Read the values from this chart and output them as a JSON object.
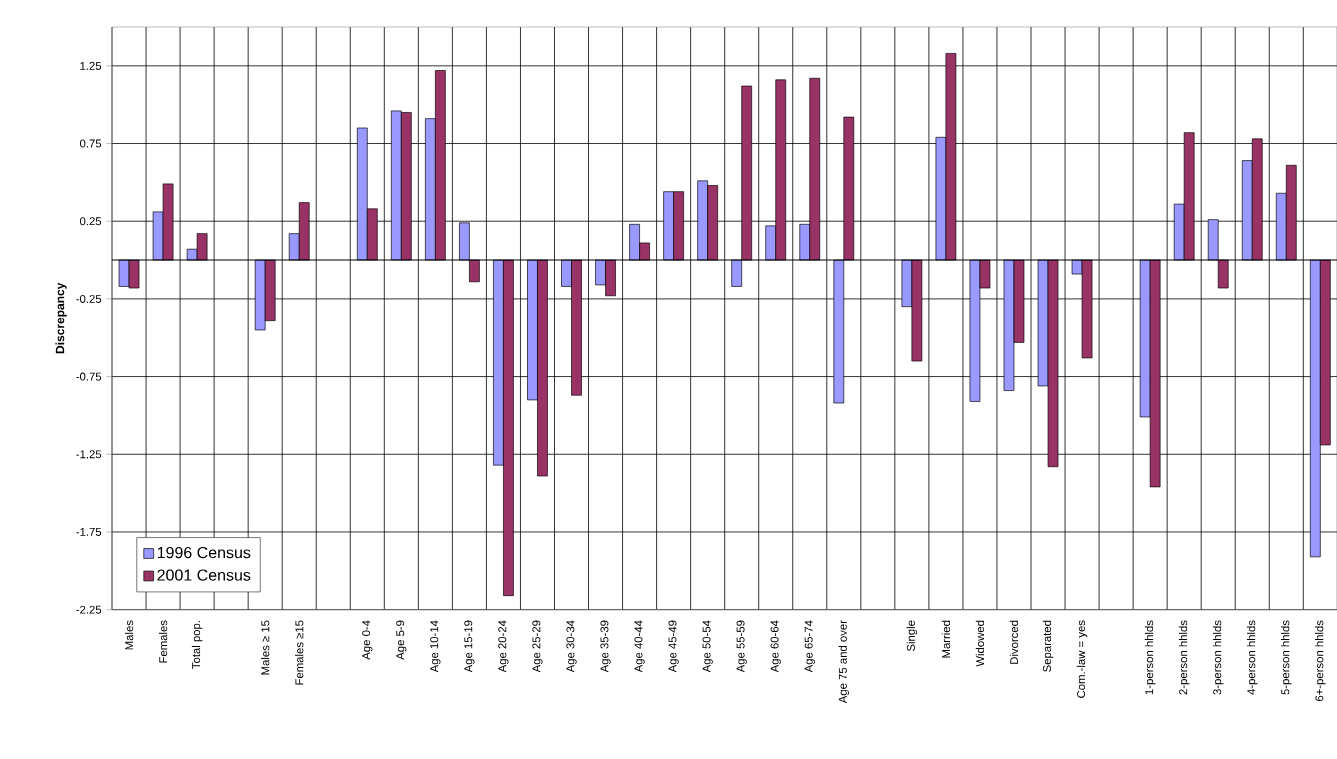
{
  "chart_data": {
    "type": "bar",
    "ylabel": "Discrepancy",
    "categories": [
      "Males",
      "Females",
      "Total pop.",
      null,
      "Males ≥ 15",
      "Females ≥15",
      null,
      "Age 0-4",
      "Age 5-9",
      "Age 10-14",
      "Age 15-19",
      "Age 20-24",
      "Age 25-29",
      "Age 30-34",
      "Age 35-39",
      "Age 40-44",
      "Age 45-49",
      "Age 50-54",
      "Age 55-59",
      "Age 60-64",
      "Age 65-74",
      "Age 75 and over",
      null,
      "Single",
      "Married",
      "Widowed",
      "Divorced",
      "Separated",
      "Com.-law = yes",
      null,
      "1-person hhlds",
      "2-person hhlds",
      "3-person hhlds",
      "4-person hhlds",
      "5-person hhlds",
      "6+-person hhlds"
    ],
    "series": [
      {
        "name": "1996 Census",
        "color": "#9999ff",
        "values": [
          -0.17,
          0.31,
          0.07,
          null,
          -0.45,
          0.17,
          null,
          0.85,
          0.96,
          0.91,
          0.24,
          -1.32,
          -0.9,
          -0.17,
          -0.16,
          0.23,
          0.44,
          0.51,
          -0.17,
          0.22,
          0.23,
          -0.92,
          null,
          -0.3,
          0.79,
          -0.91,
          -0.84,
          -0.81,
          -0.09,
          null,
          -1.01,
          0.36,
          0.26,
          0.64,
          0.43,
          -1.91
        ]
      },
      {
        "name": "2001 Census",
        "color": "#993366",
        "values": [
          -0.18,
          0.49,
          0.17,
          null,
          -0.39,
          0.37,
          null,
          0.33,
          0.95,
          1.22,
          -0.14,
          -2.16,
          -1.39,
          -0.87,
          -0.23,
          0.11,
          0.44,
          0.48,
          1.12,
          1.16,
          1.17,
          0.92,
          null,
          -0.65,
          1.33,
          -0.18,
          -0.53,
          -1.33,
          -0.63,
          null,
          -1.46,
          0.82,
          -0.18,
          0.78,
          0.61,
          -1.19
        ]
      }
    ],
    "ylim": [
      -2.25,
      1.5
    ],
    "yticks": [
      1.25,
      0.75,
      0.25,
      -0.25,
      -0.75,
      -1.25,
      -1.75,
      -2.25
    ],
    "grid": true,
    "legend": "bottom left"
  }
}
